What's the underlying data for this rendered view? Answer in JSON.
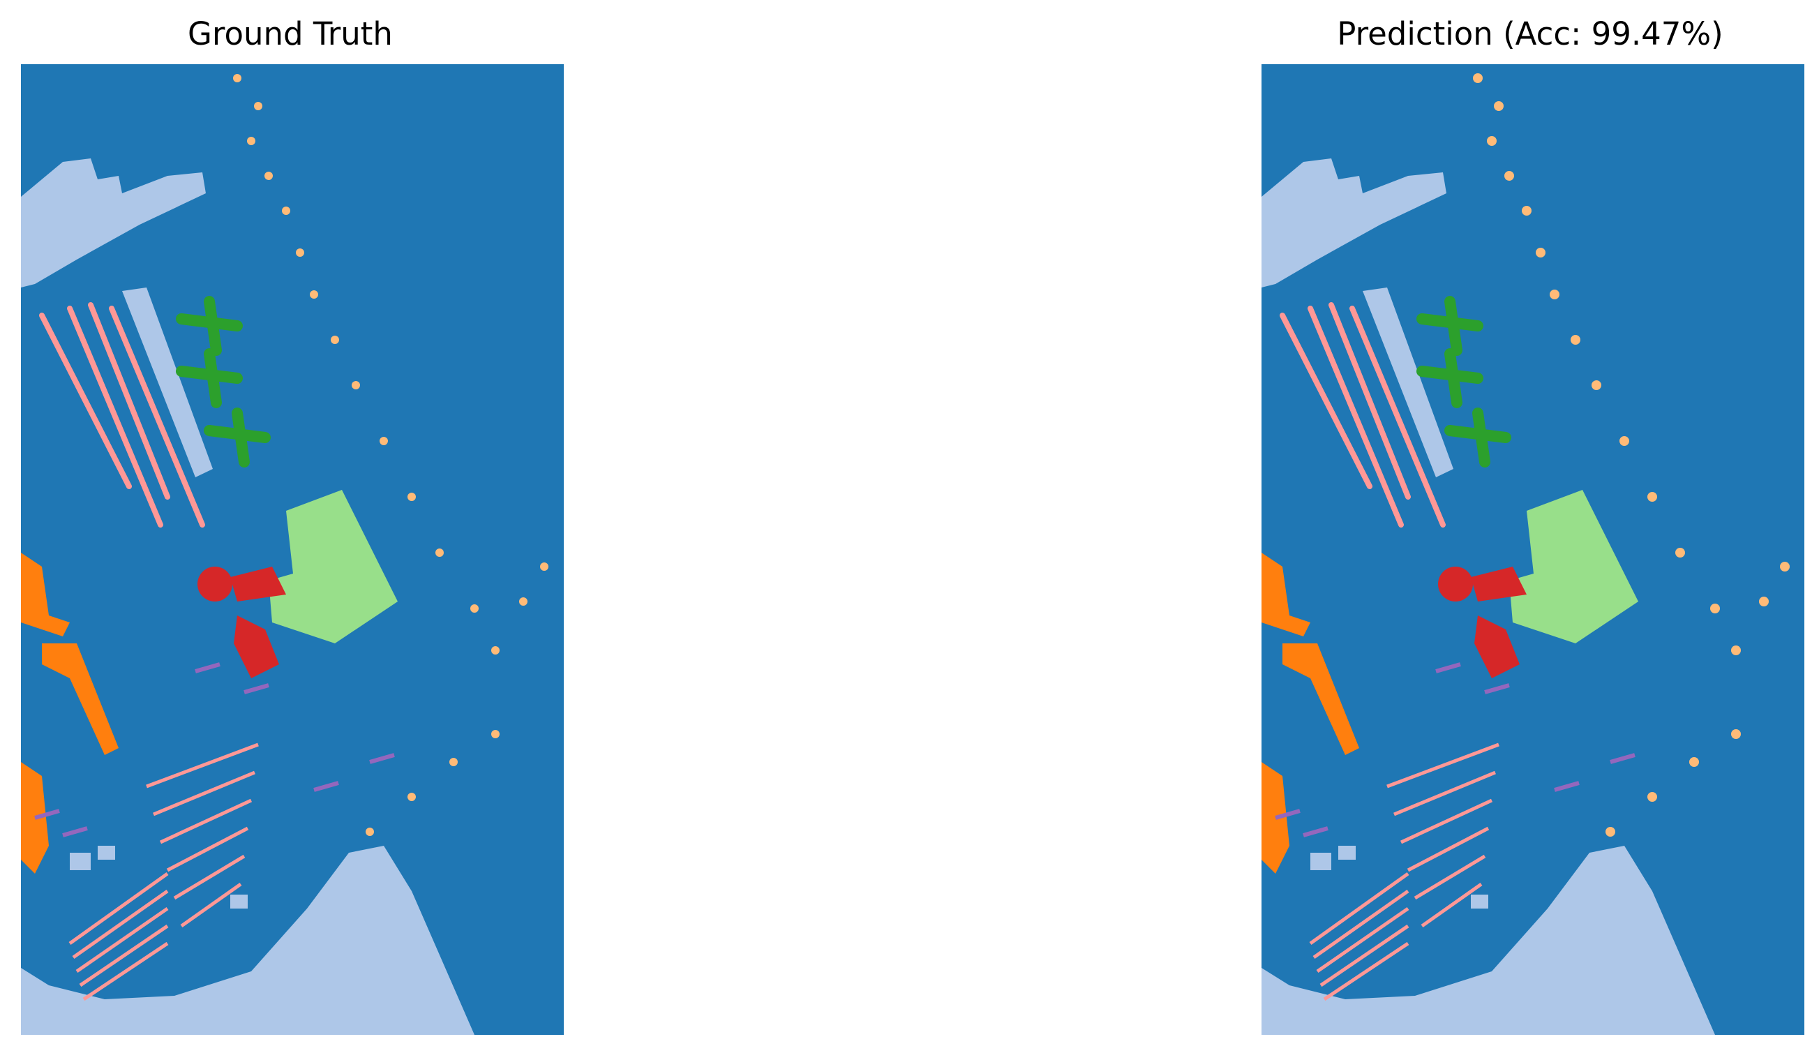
{
  "figure": {
    "panels": [
      {
        "title": "Ground Truth"
      },
      {
        "title": "Prediction (Acc: 99.47%)"
      }
    ]
  },
  "colors": {
    "background_class": "#1f77b4",
    "meadow_pale_blue": "#aec7e8",
    "orange": "#ff7f0e",
    "light_orange": "#ffbb78",
    "green": "#2ca02c",
    "light_green": "#98df8a",
    "red": "#d62728",
    "pink": "#ff9896",
    "purple": "#9467bd"
  }
}
